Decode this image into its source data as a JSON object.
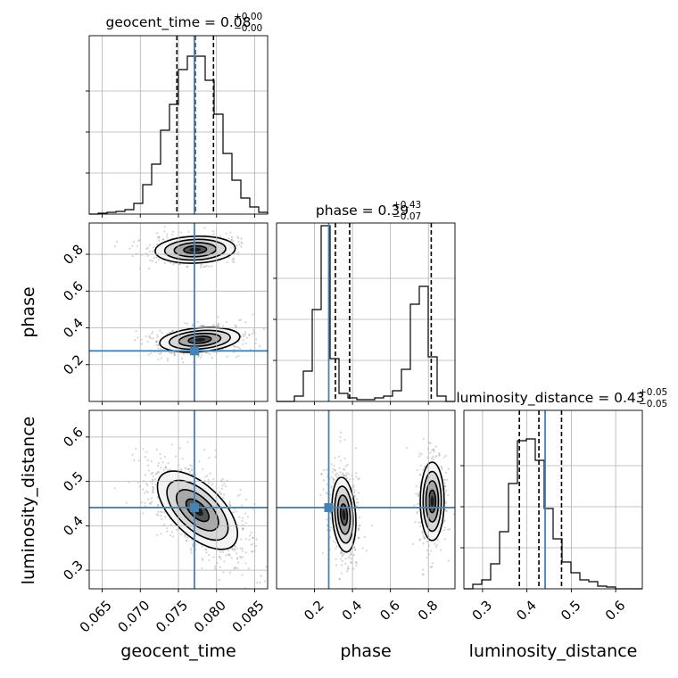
{
  "chart_data": {
    "type": "corner",
    "parameters": [
      {
        "name": "geocent_time",
        "title_value": "0.08",
        "title_plus": "+0.00",
        "title_minus": "−0.00",
        "range": [
          0.0633,
          0.0867
        ],
        "ticks": [
          "0.065",
          "0.070",
          "0.075",
          "0.080",
          "0.085"
        ],
        "tick_values": [
          0.065,
          0.07,
          0.075,
          0.08,
          0.085
        ],
        "truth": 0.0771,
        "quantiles": [
          0.0748,
          0.0772,
          0.0796
        ],
        "hist": {
          "edges_start": 0.0633,
          "bin_width": 0.00117,
          "counts": [
            0.0,
            0.005,
            0.01,
            0.015,
            0.025,
            0.06,
            0.165,
            0.28,
            0.47,
            0.615,
            0.81,
            0.885,
            0.885,
            0.75,
            0.56,
            0.34,
            0.19,
            0.09,
            0.04,
            0.01
          ]
        }
      },
      {
        "name": "phase",
        "title_value": "0.39",
        "title_plus": "+0.43",
        "title_minus": "−0.07",
        "range": [
          0.0,
          0.94
        ],
        "ticks": [
          "0.2",
          "0.4",
          "0.6",
          "0.8"
        ],
        "tick_values": [
          0.2,
          0.4,
          0.6,
          0.8
        ],
        "truth": 0.275,
        "quantiles": [
          0.31,
          0.385,
          0.815
        ],
        "hist": {
          "edges_start": 0.0,
          "bin_width": 0.047,
          "counts": [
            0.0,
            0.0,
            0.03,
            0.17,
            0.515,
            0.985,
            0.24,
            0.045,
            0.02,
            0.01,
            0.01,
            0.02,
            0.03,
            0.06,
            0.18,
            0.545,
            0.645,
            0.25,
            0.03,
            0.0
          ]
        }
      },
      {
        "name": "luminosity_distance",
        "title_value": "0.43",
        "title_plus": "+0.05",
        "title_minus": "−0.05",
        "range": [
          0.258,
          0.66
        ],
        "ticks": [
          "0.3",
          "0.4",
          "0.5",
          "0.6"
        ],
        "tick_values": [
          0.3,
          0.4,
          0.5,
          0.6
        ],
        "truth": 0.441,
        "quantiles": [
          0.383,
          0.427,
          0.478
        ],
        "hist": {
          "edges_start": 0.258,
          "bin_width": 0.0201,
          "counts": [
            0.0,
            0.025,
            0.05,
            0.14,
            0.32,
            0.59,
            0.83,
            0.84,
            0.72,
            0.45,
            0.28,
            0.15,
            0.09,
            0.05,
            0.04,
            0.015,
            0.01,
            0.0,
            0.0,
            0.0
          ]
        }
      }
    ],
    "pairs": [
      {
        "x_param": "geocent_time",
        "y_param": "phase",
        "y_range": [
          0.0,
          0.97
        ],
        "y_ticks": [
          "0.2",
          "0.4",
          "0.6",
          "0.8"
        ],
        "y_tick_values": [
          0.2,
          0.4,
          0.6,
          0.8
        ],
        "modes": [
          {
            "cx": 0.0772,
            "cy": 0.825,
            "sx": 0.0025,
            "sy": 0.035,
            "rho": 0.1,
            "weight": 0.45
          },
          {
            "cx": 0.0778,
            "cy": 0.335,
            "sx": 0.0025,
            "sy": 0.032,
            "rho": 0.25,
            "weight": 0.55
          }
        ]
      },
      {
        "x_param": "geocent_time",
        "y_param": "luminosity_distance",
        "y_range": [
          0.258,
          0.66
        ],
        "y_ticks": [
          "0.3",
          "0.4",
          "0.5",
          "0.6"
        ],
        "y_tick_values": [
          0.3,
          0.4,
          0.5,
          0.6
        ],
        "modes": [
          {
            "cx": 0.0775,
            "cy": 0.435,
            "sx": 0.0025,
            "sy": 0.042,
            "rho": -0.6,
            "weight": 1.0
          }
        ]
      },
      {
        "x_param": "phase",
        "y_param": "luminosity_distance",
        "y_range": [
          0.258,
          0.66
        ],
        "y_ticks": [],
        "y_tick_values": [],
        "modes": [
          {
            "cx": 0.355,
            "cy": 0.425,
            "sx": 0.03,
            "sy": 0.04,
            "rho": -0.2,
            "weight": 0.6
          },
          {
            "cx": 0.82,
            "cy": 0.455,
            "sx": 0.03,
            "sy": 0.042,
            "rho": 0.0,
            "weight": 0.4
          }
        ]
      }
    ],
    "x_axis_labels": [
      "geocent_time",
      "phase",
      "luminosity_distance"
    ],
    "y_axis_labels": [
      "phase",
      "luminosity_distance"
    ],
    "truth_color": "#4682b4",
    "grid": true
  }
}
